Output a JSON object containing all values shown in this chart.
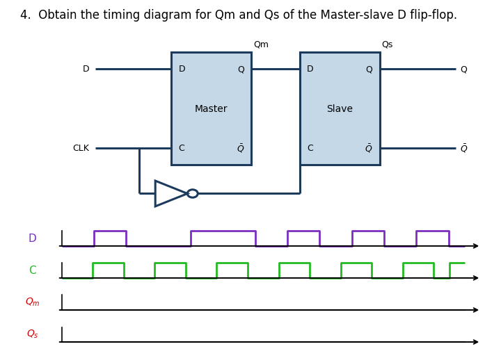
{
  "title": "4.  Obtain the timing diagram for Qm and Qs of the Master-slave D flip-flop.",
  "title_fontsize": 12,
  "bg_color": "#ffffff",
  "box_fill": "#c5d8e8",
  "box_edge": "#1b3a5c",
  "wire_color": "#1b3a5c",
  "wire_lw": 2.2,
  "D_color": "#7b2fbe",
  "C_color": "#22bb22",
  "lbl_D_color": "#7b2fbe",
  "lbl_C_color": "#22bb22",
  "lbl_Qm_color": "#cc0000",
  "lbl_Qs_color": "#cc0000",
  "D_vals": [
    0,
    0,
    1,
    1,
    0,
    0,
    0,
    0,
    1,
    1,
    1,
    1,
    0,
    0,
    1,
    1,
    0,
    0,
    1,
    1,
    0,
    0,
    1,
    1,
    0
  ],
  "C_vals": [
    0,
    0,
    1,
    1,
    0,
    0,
    1,
    1,
    0,
    0,
    1,
    1,
    0,
    0,
    1,
    1,
    0,
    0,
    1,
    1,
    0,
    0,
    1,
    1,
    0,
    1
  ]
}
